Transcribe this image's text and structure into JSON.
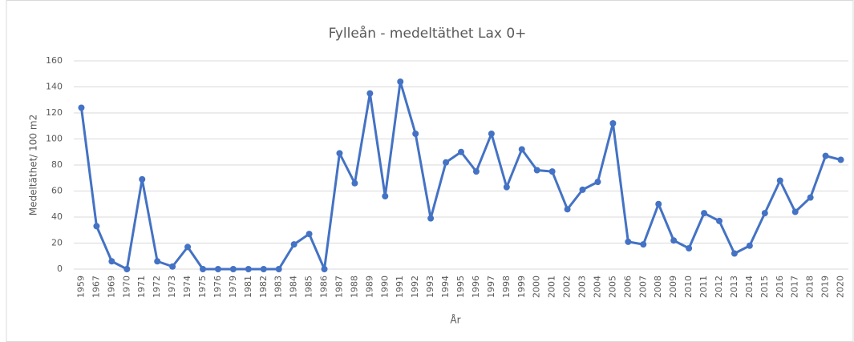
{
  "chart_data": {
    "type": "line",
    "title": "Fylleån - medeltäthet Lax 0+",
    "x_label": "År",
    "y_label": "Medeltäthet/ 100 m2",
    "categories": [
      "1959",
      "1967",
      "1969",
      "1970",
      "1971",
      "1972",
      "1973",
      "1974",
      "1975",
      "1976",
      "1979",
      "1981",
      "1982",
      "1983",
      "1984",
      "1985",
      "1986",
      "1987",
      "1988",
      "1989",
      "1990",
      "1991",
      "1992",
      "1993",
      "1994",
      "1995",
      "1996",
      "1997",
      "1998",
      "1999",
      "2000",
      "2001",
      "2002",
      "2003",
      "2004",
      "2005",
      "2006",
      "2007",
      "2008",
      "2009",
      "2010",
      "2011",
      "2012",
      "2013",
      "2014",
      "2015",
      "2016",
      "2017",
      "2018",
      "2019",
      "2020"
    ],
    "series": [
      {
        "name": "Lax 0+",
        "color": "#4472c4",
        "values": [
          124,
          33,
          6,
          0,
          69,
          6,
          2,
          17,
          0,
          0,
          0,
          0,
          0,
          0,
          19,
          27,
          0,
          89,
          66,
          135,
          56,
          144,
          104,
          39,
          82,
          90,
          75,
          104,
          63,
          92,
          76,
          75,
          46,
          61,
          67,
          112,
          21,
          19,
          50,
          22,
          16,
          43,
          37,
          12,
          18,
          43,
          68,
          44,
          55,
          87,
          84
        ]
      }
    ],
    "ylim": [
      0,
      160
    ],
    "yticks": [
      0,
      20,
      40,
      60,
      80,
      100,
      120,
      140,
      160
    ],
    "grid": true
  }
}
